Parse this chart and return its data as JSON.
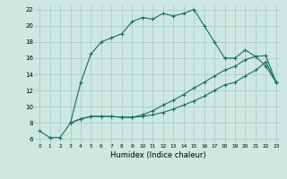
{
  "xlabel": "Humidex (Indice chaleur)",
  "bg_color": "#cce8e0",
  "grid_color": "#aacccc",
  "line_color": "#1a6e60",
  "xlim": [
    -0.5,
    23.5
  ],
  "ylim": [
    5.5,
    22.5
  ],
  "yticks": [
    6,
    8,
    10,
    12,
    14,
    16,
    18,
    20,
    22
  ],
  "xticks": [
    0,
    1,
    2,
    3,
    4,
    5,
    6,
    7,
    8,
    9,
    10,
    11,
    12,
    13,
    14,
    15,
    16,
    17,
    18,
    19,
    20,
    21,
    22,
    23
  ],
  "line1_x": [
    0,
    1,
    2,
    3,
    4,
    5,
    6,
    7,
    8,
    9,
    10,
    11,
    12,
    13,
    14,
    15,
    16,
    17,
    18,
    19,
    20,
    21,
    22,
    23
  ],
  "line1_y": [
    7.0,
    6.2,
    6.2,
    8.0,
    13.0,
    16.5,
    18.0,
    18.5,
    19.0,
    20.5,
    21.0,
    20.8,
    21.5,
    21.2,
    21.5,
    22.0,
    20.0,
    18.0,
    16.0,
    16.0,
    17.0,
    16.2,
    15.0,
    13.0
  ],
  "line2_x": [
    3,
    4,
    5,
    6,
    7,
    8,
    9,
    10,
    11,
    12,
    13,
    14,
    15,
    16,
    17,
    18,
    19,
    20,
    21,
    22,
    23
  ],
  "line2_y": [
    8.0,
    8.5,
    8.8,
    8.8,
    8.8,
    8.7,
    8.7,
    8.8,
    9.0,
    9.3,
    9.7,
    10.2,
    10.7,
    11.3,
    12.0,
    12.7,
    13.0,
    13.8,
    14.5,
    15.5,
    13.0
  ],
  "line3_x": [
    3,
    4,
    5,
    6,
    7,
    8,
    9,
    10,
    11,
    12,
    13,
    14,
    15,
    16,
    17,
    18,
    19,
    20,
    21,
    22,
    23
  ],
  "line3_y": [
    8.0,
    8.5,
    8.8,
    8.8,
    8.8,
    8.7,
    8.7,
    9.0,
    9.5,
    10.2,
    10.8,
    11.5,
    12.3,
    13.0,
    13.8,
    14.5,
    15.0,
    15.8,
    16.2,
    16.3,
    13.0
  ]
}
